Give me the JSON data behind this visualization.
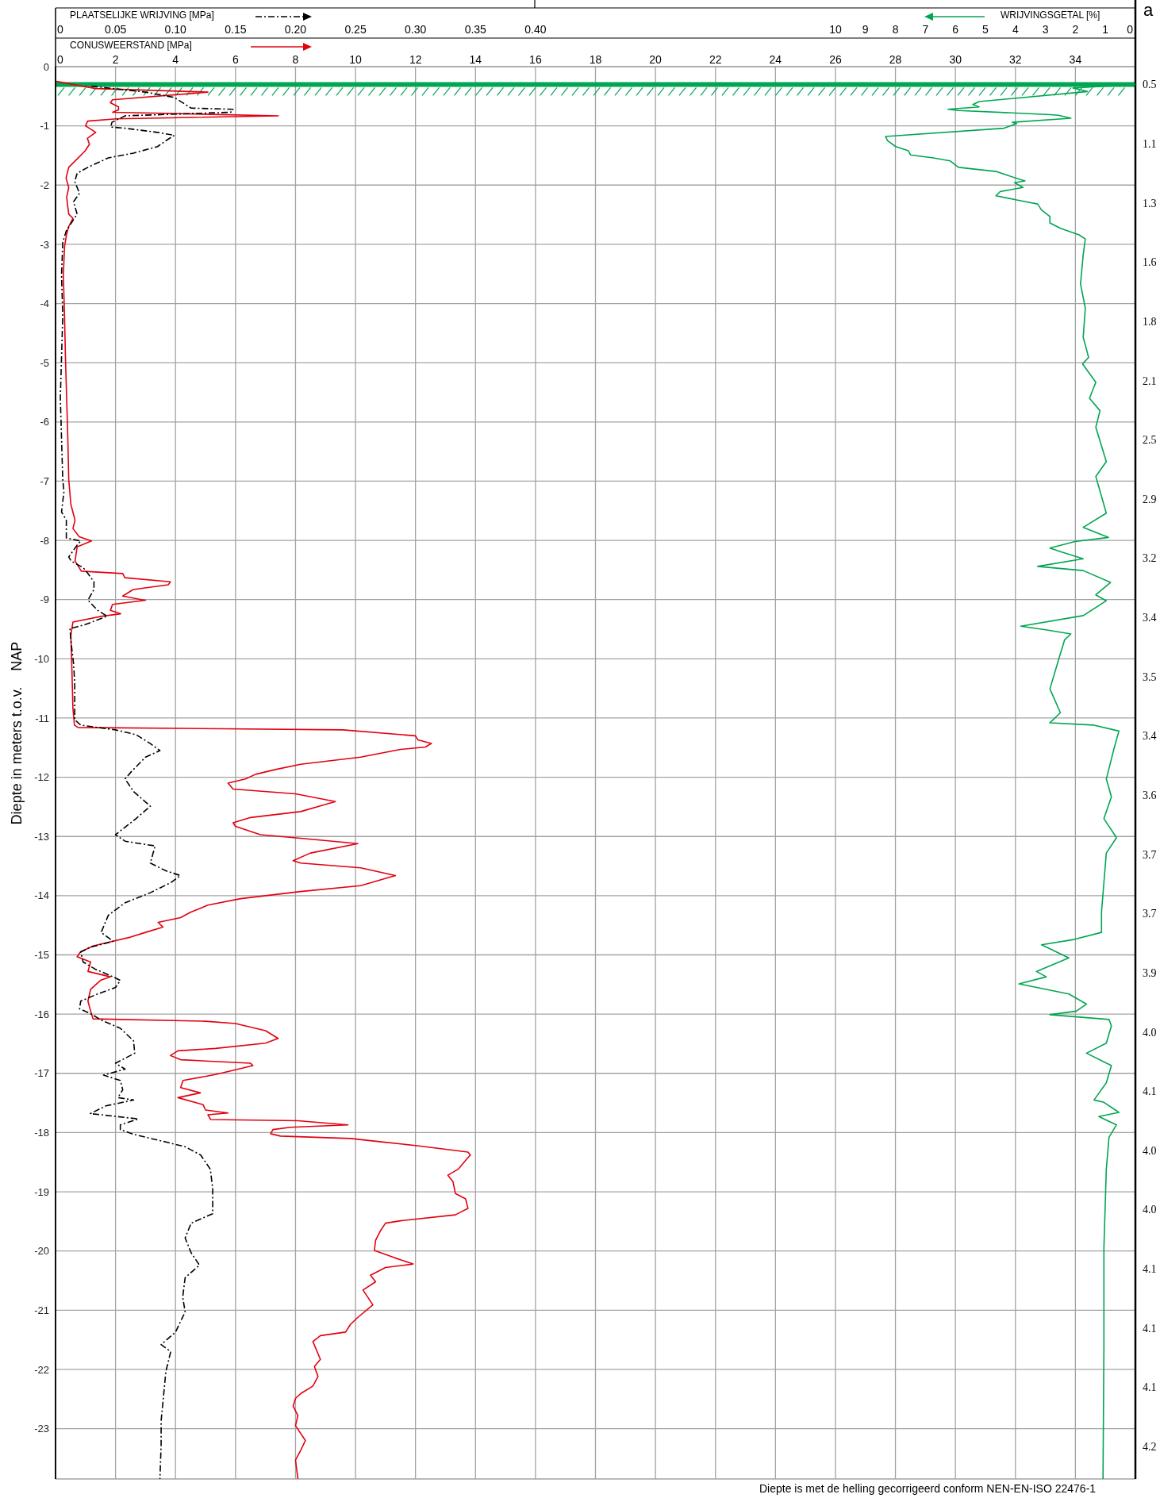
{
  "chart_data": [
    {
      "type": "line",
      "xlabel": "CONUSWEERSTAND [MPa]",
      "x2label": "PLAATSELIJKE WRIJVING [MPa]",
      "ylabel": "Diepte in meters t.o.v.    NAP",
      "xlim": [
        0,
        36
      ],
      "xticks": [
        0,
        2,
        4,
        6,
        8,
        10,
        12,
        14,
        16,
        18,
        20,
        22,
        24,
        26,
        28,
        30,
        32,
        34
      ],
      "x2lim": [
        0,
        0.9
      ],
      "x2ticks": [
        0,
        0.05,
        {
          "value": 0.1,
          "label": "0.10"
        },
        0.15,
        {
          "value": 0.2,
          "label": "0.20"
        },
        0.25,
        {
          "value": 0.3,
          "label": "0.30"
        },
        0.35,
        {
          "value": 0.4,
          "label": "0.40"
        }
      ],
      "ylim": [
        -23.85,
        0
      ],
      "yticks": [
        0,
        -1,
        -2,
        -3,
        -4,
        -5,
        -6,
        -7,
        -8,
        -9,
        -10,
        -11,
        -12,
        -13,
        -14,
        -15,
        -16,
        -17,
        -18,
        -19,
        -20,
        -21,
        -22,
        -23
      ],
      "grid": true,
      "marker": "none",
      "ref_lines": [
        {
          "axis": "y",
          "value": -0.3,
          "color": "#00a651"
        }
      ],
      "annotations": [
        "a",
        "Diepte is met de helling gecorrigeerd conform NEN-EN-ISO 22476-1",
        "0.5",
        "1.1",
        "1.3",
        "1.6",
        "1.8",
        "2.1",
        "2.5",
        "2.9",
        "3.2",
        "3.4",
        "3.5",
        "3.4",
        "3.6",
        "3.7",
        "3.7",
        "3.9",
        "4.0",
        "4.1",
        "4.0",
        "4.0",
        "4.1",
        "4.1",
        "4.1",
        "4.2"
      ],
      "series": [
        {
          "color": "#e3000f",
          "line_style": "solid",
          "x": [
            0.03,
            1.34,
            5.08,
            1.9,
            1.83,
            2.1,
            2.1,
            1.9,
            7.43,
            2.03,
            1.07,
            1.0,
            1.34,
            1.06,
            1.13,
            0.99,
            0.72,
            0.44,
            0.35,
            0.44,
            0.37,
            0.44,
            0.58,
            0.44,
            0.37,
            0.3,
            0.26,
            0.3,
            0.33,
            0.37,
            0.41,
            0.44,
            0.51,
            0.65,
            0.58,
            0.79,
            1.2,
            0.72,
            0.65,
            0.86,
            2.24,
            2.31,
            3.83,
            3.76,
            2.59,
            2.24,
            2.86,
            3.0,
            1.9,
            1.83,
            2.17,
            1.55,
            0.58,
            0.51,
            0.54,
            0.58,
            0.63,
            0.75,
            9.58,
            12.0,
            12.08,
            12.53,
            12.33,
            11.5,
            10.17,
            8.17,
            7.33,
            6.67,
            6.33,
            5.75,
            5.92,
            8.0,
            9.33,
            8.17,
            6.5,
            5.92,
            6.0,
            6.83,
            8.17,
            10.08,
            8.5,
            7.92,
            8.17,
            10.17,
            11.33,
            10.17,
            8.17,
            6.17,
            5.08,
            4.5,
            4.17,
            3.42,
            3.58,
            3.0,
            2.5,
            1.83,
            1.25,
            0.83,
            0.72,
            1.17,
            1.08,
            1.83,
            1.5,
            1.17,
            1.08,
            1.17,
            1.25,
            5.0,
            6.0,
            7.0,
            7.42,
            7.0,
            5.33,
            4.08,
            3.83,
            4.17,
            6.5,
            6.58,
            5.92,
            5.33,
            4.25,
            4.17,
            4.83,
            4.08,
            4.92,
            5.0,
            5.75,
            5.08,
            5.17,
            8.08,
            9.75,
            7.83,
            7.25,
            7.17,
            7.5,
            9.83,
            10.92,
            12.0,
            13.75,
            13.83,
            13.67,
            13.42,
            13.08,
            13.25,
            13.33,
            13.67,
            13.75,
            13.33,
            11.5,
            11.0,
            10.83,
            10.67,
            10.63,
            11.33,
            11.92,
            11.0,
            10.5,
            10.67,
            10.25,
            10.58,
            10.08,
            9.83,
            9.67,
            8.83,
            8.58,
            8.83,
            8.63,
            8.75,
            8.58,
            8.17,
            8.0,
            7.92,
            8.08,
            8.0,
            8.33,
            8.17,
            8.0,
            8.08
          ],
          "values": [
            -0.25,
            -0.37,
            -0.43,
            -0.56,
            -0.61,
            -0.68,
            -0.73,
            -0.77,
            -0.83,
            -0.88,
            -0.92,
            -1.0,
            -1.11,
            -1.21,
            -1.31,
            -1.42,
            -1.56,
            -1.7,
            -1.88,
            -2.04,
            -2.21,
            -2.49,
            -2.56,
            -2.7,
            -2.83,
            -3.04,
            -3.52,
            -4.21,
            -4.9,
            -5.6,
            -6.28,
            -6.97,
            -7.39,
            -7.66,
            -7.8,
            -7.94,
            -8.01,
            -8.11,
            -8.35,
            -8.52,
            -8.56,
            -8.63,
            -8.7,
            -8.75,
            -8.83,
            -8.94,
            -9.0,
            -9.01,
            -9.08,
            -9.18,
            -9.24,
            -9.28,
            -9.38,
            -9.6,
            -10.08,
            -10.84,
            -11.12,
            -11.16,
            -11.2,
            -11.3,
            -11.37,
            -11.43,
            -11.49,
            -11.53,
            -11.66,
            -11.78,
            -11.87,
            -11.95,
            -12.03,
            -12.1,
            -12.2,
            -12.28,
            -12.41,
            -12.58,
            -12.68,
            -12.77,
            -12.83,
            -12.97,
            -13.03,
            -13.12,
            -13.28,
            -13.41,
            -13.45,
            -13.53,
            -13.66,
            -13.83,
            -13.93,
            -14.05,
            -14.16,
            -14.28,
            -14.37,
            -14.45,
            -14.53,
            -14.62,
            -14.7,
            -14.78,
            -14.85,
            -14.95,
            -15.03,
            -15.12,
            -15.28,
            -15.37,
            -15.43,
            -15.58,
            -15.78,
            -15.95,
            -16.08,
            -16.12,
            -16.16,
            -16.28,
            -16.41,
            -16.49,
            -16.58,
            -16.62,
            -16.7,
            -16.77,
            -16.83,
            -16.87,
            -16.95,
            -17.02,
            -17.12,
            -17.24,
            -17.33,
            -17.41,
            -17.53,
            -17.62,
            -17.67,
            -17.7,
            -17.78,
            -17.8,
            -17.87,
            -17.91,
            -17.95,
            -18.02,
            -18.06,
            -18.1,
            -18.16,
            -18.22,
            -18.33,
            -18.38,
            -18.47,
            -18.62,
            -18.72,
            -18.83,
            -19.03,
            -19.12,
            -19.28,
            -19.39,
            -19.49,
            -19.53,
            -19.66,
            -19.82,
            -19.99,
            -20.12,
            -20.22,
            -20.28,
            -20.41,
            -20.52,
            -20.66,
            -20.91,
            -21.12,
            -21.24,
            -21.37,
            -21.43,
            -21.53,
            -21.83,
            -21.95,
            -22.12,
            -22.28,
            -22.41,
            -22.49,
            -22.62,
            -22.78,
            -22.95,
            -23.2,
            -23.37,
            -23.53,
            -23.85
          ]
        },
        {
          "color": "#000000",
          "line_style": "dashed",
          "axis": "x2",
          "x": [
            0.03,
            0.075,
            0.099,
            0.113,
            0.148,
            0.146,
            0.103,
            0.058,
            0.047,
            0.046,
            0.058,
            0.085,
            0.099,
            0.092,
            0.085,
            0.065,
            0.044,
            0.027,
            0.018,
            0.016,
            0.02,
            0.015,
            0.018,
            0.009,
            0.006,
            0.005,
            0.006,
            0.005,
            0.004,
            0.005,
            0.006,
            0.007,
            0.005,
            0.009,
            0.009,
            0.021,
            0.018,
            0.011,
            0.013,
            0.023,
            0.027,
            0.032,
            0.032,
            0.027,
            0.035,
            0.043,
            0.025,
            0.012,
            0.013,
            0.015,
            0.016,
            0.016,
            0.016,
            0.021,
            0.05,
            0.067,
            0.079,
            0.087,
            0.075,
            0.063,
            0.058,
            0.065,
            0.079,
            0.067,
            0.05,
            0.058,
            0.083,
            0.079,
            0.092,
            0.104,
            0.096,
            0.079,
            0.058,
            0.044,
            0.038,
            0.048,
            0.029,
            0.021,
            0.023,
            0.033,
            0.048,
            0.054,
            0.05,
            0.035,
            0.021,
            0.02,
            0.029,
            0.038,
            0.054,
            0.065,
            0.066,
            0.05,
            0.058,
            0.04,
            0.054,
            0.056,
            0.052,
            0.065,
            0.042,
            0.029,
            0.069,
            0.054,
            0.054,
            0.065,
            0.092,
            0.108,
            0.121,
            0.129,
            0.131,
            0.131,
            0.113,
            0.108,
            0.113,
            0.12,
            0.108,
            0.106,
            0.108,
            0.1,
            0.088,
            0.096,
            0.092,
            0.09,
            0.088,
            0.088,
            0.087
          ],
          "values": [
            -0.33,
            -0.43,
            -0.52,
            -0.7,
            -0.72,
            -0.77,
            -0.8,
            -0.83,
            -0.94,
            -1.02,
            -1.04,
            -1.11,
            -1.16,
            -1.25,
            -1.35,
            -1.46,
            -1.54,
            -1.7,
            -1.8,
            -1.94,
            -2.14,
            -2.28,
            -2.49,
            -2.77,
            -2.97,
            -3.52,
            -4.21,
            -4.9,
            -5.59,
            -6.28,
            -6.97,
            -7.18,
            -7.52,
            -7.66,
            -7.96,
            -8.01,
            -8.08,
            -8.28,
            -8.35,
            -8.46,
            -8.56,
            -8.7,
            -8.83,
            -9.01,
            -9.18,
            -9.28,
            -9.42,
            -9.49,
            -9.73,
            -10.08,
            -10.42,
            -10.83,
            -11.03,
            -11.12,
            -11.2,
            -11.28,
            -11.43,
            -11.55,
            -11.66,
            -11.91,
            -12.03,
            -12.24,
            -12.49,
            -12.7,
            -12.97,
            -13.08,
            -13.16,
            -13.45,
            -13.58,
            -13.66,
            -13.78,
            -13.95,
            -14.12,
            -14.33,
            -14.62,
            -14.77,
            -14.87,
            -14.95,
            -15.12,
            -15.24,
            -15.37,
            -15.43,
            -15.55,
            -15.66,
            -15.78,
            -15.91,
            -15.99,
            -16.1,
            -16.24,
            -16.45,
            -16.66,
            -16.83,
            -16.93,
            -17.03,
            -17.12,
            -17.28,
            -17.41,
            -17.45,
            -17.55,
            -17.68,
            -17.77,
            -17.87,
            -17.95,
            -18.03,
            -18.16,
            -18.24,
            -18.38,
            -18.62,
            -18.95,
            -19.37,
            -19.53,
            -19.78,
            -20.03,
            -20.24,
            -20.45,
            -20.78,
            -21.03,
            -21.37,
            -21.58,
            -21.7,
            -22.03,
            -22.45,
            -22.87,
            -23.28,
            -23.85
          ]
        }
      ]
    },
    {
      "type": "line",
      "xlabel": "WRIJVINGSGETAL [%]",
      "xlim": [
        36,
        0
      ],
      "xticks": [
        10,
        9,
        8,
        7,
        6,
        5,
        4,
        3,
        2,
        1,
        0
      ],
      "ylim": [
        -23.85,
        0
      ],
      "tick_labels": "x",
      "marker": "none",
      "series": [
        {
          "color": "#00a651",
          "line_style": "solid",
          "x": [
            0,
            2.08,
            1.6,
            5.21,
            5.42,
            5.21,
            6.25,
            5.9,
            2.85,
            2.57,
            2.15,
            4.1,
            3.96,
            4.38,
            8.33,
            8.26,
            7.99,
            7.57,
            7.5,
            6.74,
            6.18,
            5.9,
            4.65,
            3.82,
            3.68,
            4.03,
            3.75,
            4.51,
            4.65,
            3.96,
            3.26,
            3.13,
            2.85,
            2.85,
            2.5,
            1.88,
            1.67,
            1.74,
            1.83,
            1.67,
            1.74,
            1.56,
            1.76,
            1.32,
            1.53,
            1.18,
            1.32,
            0.97,
            1.32,
            0.97,
            1.74,
            0.9,
            2.01,
            2.85,
            2.5,
            1.74,
            3.26,
            1.74,
            0.83,
            1.32,
            0.97,
            1.74,
            3.82,
            2.99,
            2.15,
            2.36,
            2.57,
            2.85,
            2.5,
            2.85,
            1.38,
            0.55,
            0.72,
            0.97,
            0.8,
            1.05,
            0.63,
            0.97,
            1.05,
            1.13,
            1.13,
            2.05,
            3.13,
            2.22,
            3.3,
            2.97,
            3.88,
            2.22,
            1.63,
            1.97,
            2.85,
            0.88,
            0.8,
            0.97,
            1.63,
            0.8,
            0.97,
            1.38,
            1.05,
            0.55,
            1.22,
            0.63,
            0.88,
            0.97,
            1.05,
            1.05,
            1.08
          ],
          "values": [
            -0.3,
            -0.36,
            -0.42,
            -0.59,
            -0.64,
            -0.68,
            -0.72,
            -0.74,
            -0.81,
            -0.82,
            -0.87,
            -0.94,
            -0.96,
            -1.04,
            -1.18,
            -1.25,
            -1.35,
            -1.42,
            -1.49,
            -1.54,
            -1.59,
            -1.7,
            -1.77,
            -1.91,
            -1.93,
            -1.96,
            -2.04,
            -2.11,
            -2.18,
            -2.25,
            -2.32,
            -2.42,
            -2.53,
            -2.64,
            -2.73,
            -2.84,
            -2.91,
            -3.18,
            -3.67,
            -4.08,
            -4.57,
            -4.91,
            -5.02,
            -5.33,
            -5.6,
            -5.81,
            -6.09,
            -6.67,
            -6.92,
            -7.54,
            -7.78,
            -7.95,
            -8.02,
            -8.13,
            -8.19,
            -8.31,
            -8.44,
            -8.51,
            -8.71,
            -8.92,
            -9.02,
            -9.27,
            -9.45,
            -9.51,
            -9.58,
            -9.68,
            -10.03,
            -10.51,
            -10.91,
            -11.08,
            -11.12,
            -11.22,
            -11.53,
            -12.03,
            -12.33,
            -12.7,
            -13.02,
            -13.28,
            -13.78,
            -14.28,
            -14.62,
            -14.74,
            -14.83,
            -15.05,
            -15.28,
            -15.37,
            -15.49,
            -15.66,
            -15.83,
            -15.95,
            -16.01,
            -16.09,
            -16.2,
            -16.49,
            -16.66,
            -16.87,
            -17.16,
            -17.45,
            -17.49,
            -17.66,
            -17.73,
            -17.87,
            -18.08,
            -18.62,
            -19.95,
            -21.62,
            -23.85
          ]
        }
      ]
    }
  ]
}
